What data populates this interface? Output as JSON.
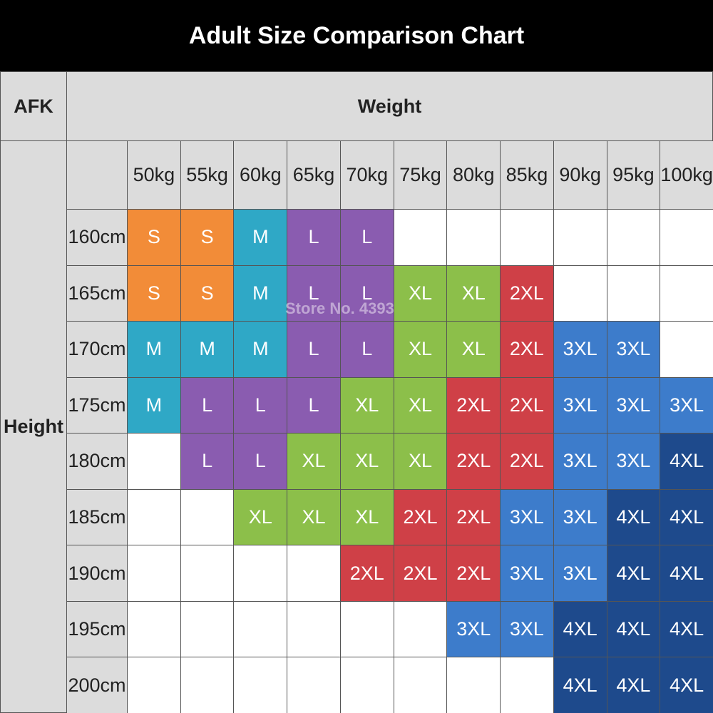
{
  "header": {
    "title": "Adult Size Comparison Chart"
  },
  "table": {
    "corner": "AFK",
    "column_group": "Weight",
    "row_group": "Height",
    "columns": [
      "50kg",
      "55kg",
      "60kg",
      "65kg",
      "70kg",
      "75kg",
      "80kg",
      "85kg",
      "90kg",
      "95kg",
      "100kg"
    ],
    "row_labels": [
      "160cm",
      "165cm",
      "170cm",
      "175cm",
      "180cm",
      "185cm",
      "190cm",
      "195cm",
      "200cm"
    ],
    "rows": [
      [
        "S",
        "S",
        "M",
        "L",
        "L",
        null,
        null,
        null,
        null,
        null,
        null
      ],
      [
        "S",
        "S",
        "M",
        "L",
        "L",
        "XL",
        "XL",
        "2XL",
        null,
        null,
        null
      ],
      [
        "M",
        "M",
        "M",
        "L",
        "L",
        "XL",
        "XL",
        "2XL",
        "3XL",
        "3XL",
        null
      ],
      [
        "M",
        "L",
        "L",
        "L",
        "XL",
        "XL",
        "2XL",
        "2XL",
        "3XL",
        "3XL",
        "3XL"
      ],
      [
        null,
        "L",
        "L",
        "XL",
        "XL",
        "XL",
        "2XL",
        "2XL",
        "3XL",
        "3XL",
        "4XL"
      ],
      [
        null,
        null,
        "XL",
        "XL",
        "XL",
        "2XL",
        "2XL",
        "3XL",
        "3XL",
        "4XL",
        "4XL"
      ],
      [
        null,
        null,
        null,
        null,
        "2XL",
        "2XL",
        "2XL",
        "3XL",
        "3XL",
        "4XL",
        "4XL"
      ],
      [
        null,
        null,
        null,
        null,
        null,
        null,
        "3XL",
        "3XL",
        "4XL",
        "4XL",
        "4XL"
      ],
      [
        null,
        null,
        null,
        null,
        null,
        null,
        null,
        null,
        "4XL",
        "4XL",
        "4XL"
      ]
    ],
    "size_colors": {
      "S": "#f28c38",
      "M": "#2fa8c6",
      "L": "#8a5cb0",
      "XL": "#8cbf4a",
      "2XL": "#cf4047",
      "3XL": "#3d7ccb",
      "4XL": "#1e4a8c"
    }
  },
  "watermark": "Store No. 4393"
}
